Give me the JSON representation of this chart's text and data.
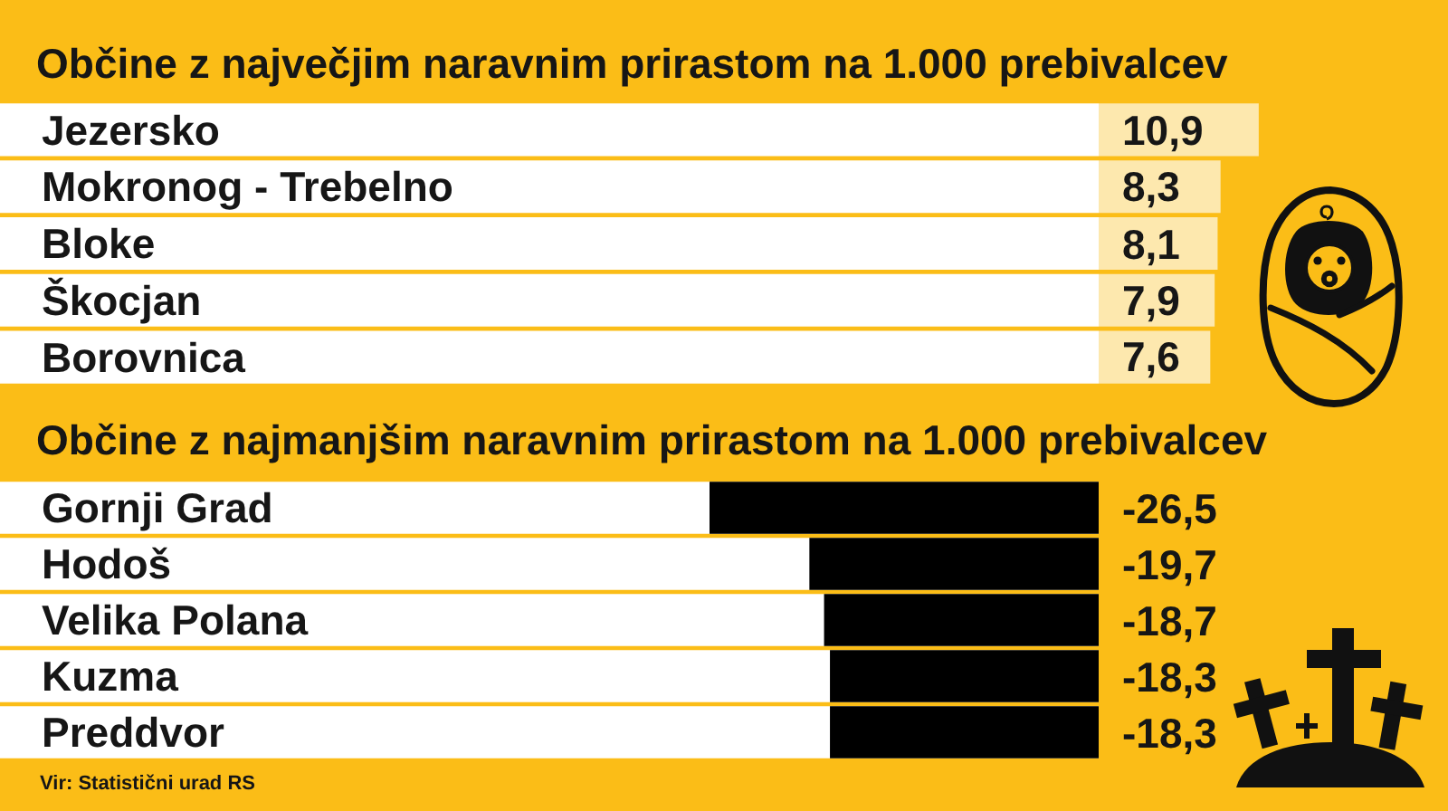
{
  "chart_data": [
    {
      "type": "bar",
      "orientation": "horizontal",
      "title": "Občine z največjim naravnim prirastom na 1.000 prebivalcev",
      "categories": [
        "Jezersko",
        "Mokronog - Trebelno",
        "Bloke",
        "Škocjan",
        "Borovnica"
      ],
      "values": [
        10.9,
        8.3,
        8.1,
        7.9,
        7.6
      ],
      "value_labels": [
        "10,9",
        "8,3",
        "8,1",
        "7,9",
        "7,6"
      ],
      "color": "#fde8ae",
      "tick_labels": "y"
    },
    {
      "type": "bar",
      "orientation": "horizontal",
      "title": "Občine z najmanjšim naravnim prirastom na 1.000 prebivalcev",
      "categories": [
        "Gornji Grad",
        "Hodoš",
        "Velika Polana",
        "Kuzma",
        "Preddvor"
      ],
      "values": [
        -26.5,
        -19.7,
        -18.7,
        -18.3,
        -18.3
      ],
      "value_labels": [
        "-26,5",
        "-19,7",
        "-18,7",
        "-18,3",
        "-18,3"
      ],
      "color": "#000000",
      "tick_labels": "y",
      "annotations": [
        "Vir: Statistični urad RS"
      ]
    }
  ]
}
